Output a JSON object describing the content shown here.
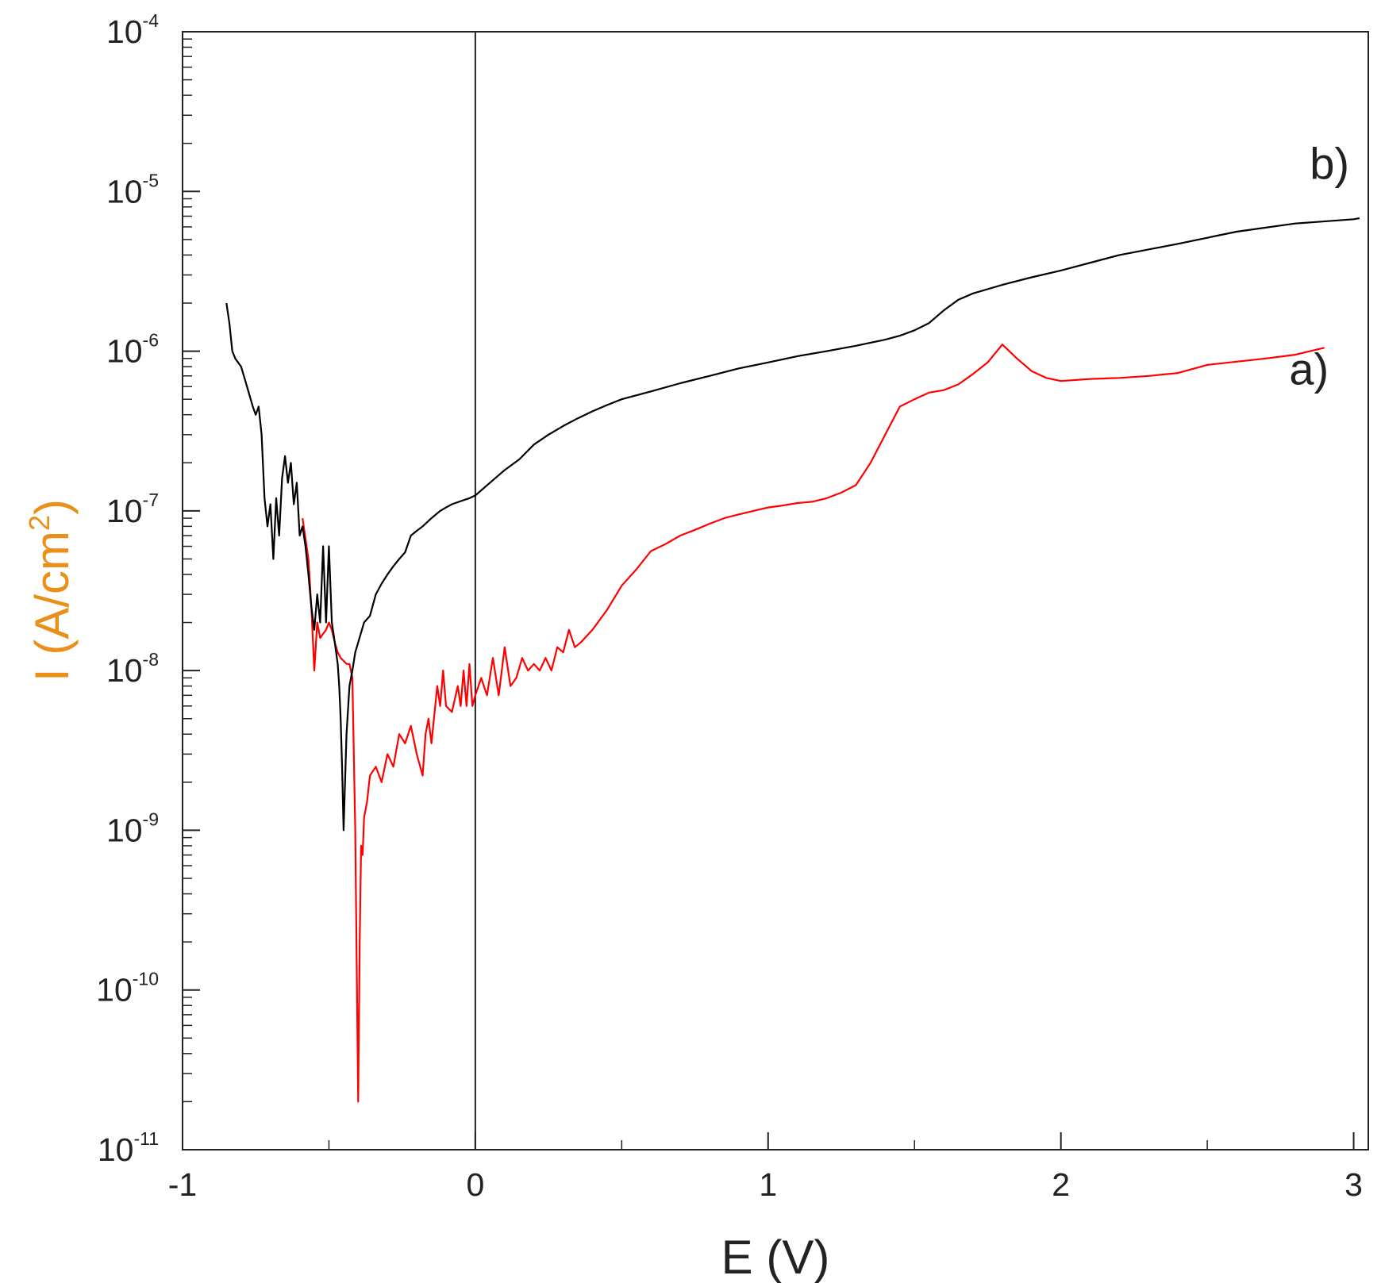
{
  "chart_data": {
    "type": "line",
    "title": "",
    "xlabel": "E (V)",
    "ylabel": "I (A/cm",
    "ylabel_sup": "2",
    "ylabel_close": ")",
    "xscale": "linear",
    "yscale": "log",
    "xlim": [
      -1,
      3.05
    ],
    "ylim": [
      1e-11,
      0.0001
    ],
    "grid": false,
    "xticks": [
      -1,
      0,
      1,
      2,
      3
    ],
    "xtick_labels": [
      "-1",
      "0",
      "1",
      "2",
      "3"
    ],
    "yticks": [
      1e-11,
      1e-10,
      1e-09,
      1e-08,
      1e-07,
      1e-06,
      1e-05,
      0.0001
    ],
    "ytick_base": "10",
    "ytick_exponents": [
      "-11",
      "-10",
      "-9",
      "-8",
      "-7",
      "-6",
      "-5",
      "-4"
    ],
    "vertical_line_x": 0,
    "series": [
      {
        "name": "a)",
        "color": "#ff0000",
        "x": [
          -0.59,
          -0.57,
          -0.56,
          -0.55,
          -0.54,
          -0.53,
          -0.52,
          -0.51,
          -0.5,
          -0.49,
          -0.48,
          -0.47,
          -0.46,
          -0.45,
          -0.44,
          -0.43,
          -0.42,
          -0.41,
          -0.4,
          -0.395,
          -0.39,
          -0.385,
          -0.38,
          -0.37,
          -0.36,
          -0.34,
          -0.32,
          -0.3,
          -0.28,
          -0.26,
          -0.24,
          -0.22,
          -0.2,
          -0.18,
          -0.17,
          -0.16,
          -0.15,
          -0.13,
          -0.12,
          -0.11,
          -0.1,
          -0.08,
          -0.06,
          -0.05,
          -0.04,
          -0.03,
          -0.02,
          -0.01,
          0.0,
          0.02,
          0.04,
          0.06,
          0.08,
          0.1,
          0.12,
          0.14,
          0.16,
          0.18,
          0.2,
          0.22,
          0.24,
          0.26,
          0.28,
          0.3,
          0.32,
          0.34,
          0.36,
          0.4,
          0.45,
          0.5,
          0.55,
          0.6,
          0.65,
          0.7,
          0.75,
          0.8,
          0.85,
          0.9,
          0.95,
          1.0,
          1.05,
          1.1,
          1.15,
          1.2,
          1.25,
          1.3,
          1.35,
          1.4,
          1.45,
          1.5,
          1.55,
          1.6,
          1.65,
          1.7,
          1.75,
          1.8,
          1.85,
          1.9,
          1.95,
          2.0,
          2.1,
          2.2,
          2.3,
          2.4,
          2.5,
          2.6,
          2.7,
          2.8,
          2.9
        ],
        "y": [
          9e-08,
          5e-08,
          2.5e-08,
          1e-08,
          2e-08,
          1.6e-08,
          1.7e-08,
          1.8e-08,
          2e-08,
          1.8e-08,
          1.5e-08,
          1.3e-08,
          1.2e-08,
          1.15e-08,
          1.1e-08,
          1.1e-08,
          9e-09,
          1e-09,
          2e-11,
          2e-10,
          8e-10,
          7e-10,
          1.2e-09,
          1.5e-09,
          2.2e-09,
          2.5e-09,
          2e-09,
          3e-09,
          2.5e-09,
          4e-09,
          3.5e-09,
          4.5e-09,
          3e-09,
          2.2e-09,
          4e-09,
          5e-09,
          3.5e-09,
          8e-09,
          6e-09,
          1e-08,
          6e-09,
          5.5e-09,
          8e-09,
          6e-09,
          1e-08,
          6e-09,
          1.1e-08,
          6e-09,
          7e-09,
          9e-09,
          7e-09,
          1.2e-08,
          7e-09,
          1.4e-08,
          8e-09,
          9e-09,
          1.2e-08,
          1e-08,
          1.1e-08,
          1e-08,
          1.2e-08,
          1e-08,
          1.4e-08,
          1.3e-08,
          1.8e-08,
          1.4e-08,
          1.5e-08,
          1.8e-08,
          2.4e-08,
          3.4e-08,
          4.3e-08,
          5.6e-08,
          6.2e-08,
          7e-08,
          7.6e-08,
          8.3e-08,
          9e-08,
          9.5e-08,
          1e-07,
          1.05e-07,
          1.08e-07,
          1.12e-07,
          1.14e-07,
          1.2e-07,
          1.3e-07,
          1.45e-07,
          2e-07,
          3e-07,
          4.5e-07,
          5e-07,
          5.5e-07,
          5.7e-07,
          6.2e-07,
          7.2e-07,
          8.5e-07,
          1.1e-06,
          9e-07,
          7.5e-07,
          6.8e-07,
          6.5e-07,
          6.7e-07,
          6.8e-07,
          7e-07,
          7.3e-07,
          8.2e-07,
          8.6e-07,
          9e-07,
          9.5e-07,
          1.05e-06
        ]
      },
      {
        "name": "b)",
        "color": "#000000",
        "x": [
          -0.85,
          -0.84,
          -0.83,
          -0.82,
          -0.8,
          -0.78,
          -0.76,
          -0.75,
          -0.74,
          -0.73,
          -0.72,
          -0.71,
          -0.7,
          -0.69,
          -0.68,
          -0.67,
          -0.66,
          -0.65,
          -0.64,
          -0.63,
          -0.62,
          -0.61,
          -0.6,
          -0.59,
          -0.58,
          -0.57,
          -0.56,
          -0.55,
          -0.54,
          -0.53,
          -0.52,
          -0.51,
          -0.5,
          -0.49,
          -0.48,
          -0.47,
          -0.465,
          -0.46,
          -0.455,
          -0.45,
          -0.44,
          -0.43,
          -0.42,
          -0.41,
          -0.4,
          -0.38,
          -0.36,
          -0.34,
          -0.32,
          -0.3,
          -0.28,
          -0.26,
          -0.24,
          -0.22,
          -0.2,
          -0.18,
          -0.15,
          -0.12,
          -0.1,
          -0.08,
          -0.05,
          -0.02,
          0.0,
          0.05,
          0.1,
          0.15,
          0.2,
          0.25,
          0.3,
          0.35,
          0.4,
          0.45,
          0.5,
          0.6,
          0.7,
          0.8,
          0.9,
          1.0,
          1.1,
          1.2,
          1.3,
          1.4,
          1.45,
          1.5,
          1.55,
          1.6,
          1.65,
          1.7,
          1.8,
          1.9,
          2.0,
          2.2,
          2.4,
          2.6,
          2.8,
          3.0,
          3.02
        ],
        "y": [
          2e-06,
          1.5e-06,
          1e-06,
          9e-07,
          8e-07,
          6e-07,
          4.5e-07,
          4e-07,
          4.5e-07,
          3e-07,
          1.2e-07,
          8e-08,
          1.1e-07,
          5e-08,
          1.2e-07,
          7e-08,
          1.6e-07,
          2.2e-07,
          1.5e-07,
          2e-07,
          1.1e-07,
          1.5e-07,
          7e-08,
          8e-08,
          6e-08,
          4e-08,
          2.5e-08,
          1.8e-08,
          3e-08,
          2e-08,
          6e-08,
          2e-08,
          6e-08,
          2e-08,
          1.5e-08,
          1.1e-08,
          8e-09,
          5e-09,
          2.5e-09,
          1e-09,
          4e-09,
          8e-09,
          1e-08,
          1.3e-08,
          1.5e-08,
          2e-08,
          2.2e-08,
          3e-08,
          3.5e-08,
          4e-08,
          4.5e-08,
          5e-08,
          5.5e-08,
          7e-08,
          7.5e-08,
          8e-08,
          9e-08,
          1e-07,
          1.05e-07,
          1.1e-07,
          1.15e-07,
          1.2e-07,
          1.25e-07,
          1.5e-07,
          1.8e-07,
          2.1e-07,
          2.6e-07,
          3e-07,
          3.4e-07,
          3.8e-07,
          4.2e-07,
          4.6e-07,
          5e-07,
          5.6e-07,
          6.3e-07,
          7e-07,
          7.8e-07,
          8.5e-07,
          9.3e-07,
          1e-06,
          1.08e-06,
          1.18e-06,
          1.25e-06,
          1.35e-06,
          1.5e-06,
          1.8e-06,
          2.1e-06,
          2.3e-06,
          2.6e-06,
          2.9e-06,
          3.2e-06,
          4e-06,
          4.7e-06,
          5.6e-06,
          6.3e-06,
          6.7e-06,
          6.8e-06
        ]
      }
    ],
    "annotations": [
      {
        "text": "b)",
        "x": 2.85,
        "y": 1.2e-05
      },
      {
        "text": "a)",
        "x": 2.78,
        "y": 6.2e-07
      }
    ]
  }
}
